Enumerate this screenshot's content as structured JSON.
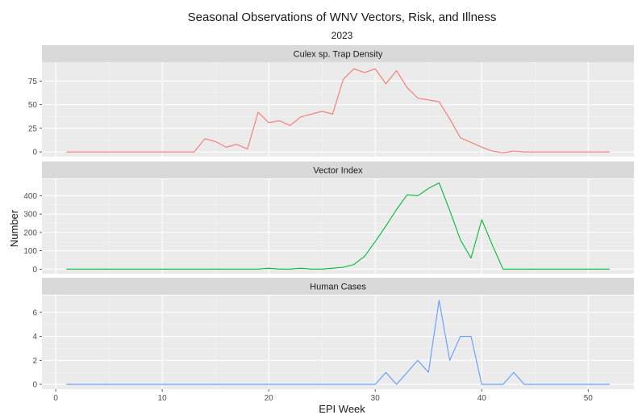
{
  "chart_data": {
    "type": "line",
    "title": "Seasonal Observations of WNV Vectors, Risk, and Illness",
    "subtitle": "2023",
    "xlabel": "EPI Week",
    "ylabel": "Number",
    "xlim": [
      1,
      52
    ],
    "x_ticks": [
      0,
      10,
      20,
      30,
      40,
      50
    ],
    "grid": true,
    "panels": [
      {
        "name": "Culex sp. Trap Density",
        "color": "#F8766D",
        "ylim": [
          -5,
          95
        ],
        "y_ticks": [
          0,
          25,
          50,
          75
        ],
        "x": [
          1,
          2,
          3,
          4,
          5,
          6,
          7,
          8,
          9,
          10,
          11,
          12,
          13,
          14,
          15,
          16,
          17,
          18,
          19,
          20,
          21,
          22,
          23,
          24,
          25,
          26,
          27,
          28,
          29,
          30,
          31,
          32,
          33,
          34,
          35,
          36,
          37,
          38,
          39,
          40,
          41,
          42,
          43,
          44,
          45,
          46,
          47,
          48,
          49,
          50,
          51,
          52
        ],
        "values": [
          0,
          0,
          0,
          0,
          0,
          0,
          0,
          0,
          0,
          0,
          0,
          0,
          0,
          14,
          11,
          5,
          8,
          3,
          42,
          31,
          33,
          28,
          37,
          40,
          43,
          40,
          77,
          88,
          84,
          88,
          72,
          86,
          68,
          57,
          55,
          53,
          35,
          15,
          10,
          5,
          1,
          -1,
          1,
          0,
          0,
          0,
          0,
          0,
          0,
          0,
          0,
          0
        ]
      },
      {
        "name": "Vector Index",
        "color": "#00BA38",
        "ylim": [
          -25,
          490
        ],
        "y_ticks": [
          0,
          100,
          200,
          300,
          400
        ],
        "x": [
          1,
          2,
          3,
          4,
          5,
          6,
          7,
          8,
          9,
          10,
          11,
          12,
          13,
          14,
          15,
          16,
          17,
          18,
          19,
          20,
          21,
          22,
          23,
          24,
          25,
          26,
          27,
          28,
          29,
          30,
          31,
          32,
          33,
          34,
          35,
          36,
          37,
          38,
          39,
          40,
          41,
          42,
          43,
          44,
          45,
          46,
          47,
          48,
          49,
          50,
          51,
          52
        ],
        "values": [
          0,
          0,
          0,
          0,
          0,
          0,
          0,
          0,
          0,
          0,
          0,
          0,
          0,
          0,
          0,
          0,
          0,
          0,
          0,
          5,
          0,
          0,
          5,
          0,
          0,
          5,
          10,
          25,
          70,
          150,
          235,
          325,
          405,
          400,
          440,
          470,
          320,
          160,
          60,
          270,
          130,
          0,
          0,
          0,
          0,
          0,
          0,
          0,
          0,
          0,
          0,
          0
        ]
      },
      {
        "name": "Human Cases",
        "color": "#619CFF",
        "ylim": [
          -0.4,
          7.4
        ],
        "y_ticks": [
          0,
          2,
          4,
          6
        ],
        "x": [
          1,
          2,
          3,
          4,
          5,
          6,
          7,
          8,
          9,
          10,
          11,
          12,
          13,
          14,
          15,
          16,
          17,
          18,
          19,
          20,
          21,
          22,
          23,
          24,
          25,
          26,
          27,
          28,
          29,
          30,
          31,
          32,
          33,
          34,
          35,
          36,
          37,
          38,
          39,
          40,
          41,
          42,
          43,
          44,
          45,
          46,
          47,
          48,
          49,
          50,
          51,
          52
        ],
        "values": [
          0,
          0,
          0,
          0,
          0,
          0,
          0,
          0,
          0,
          0,
          0,
          0,
          0,
          0,
          0,
          0,
          0,
          0,
          0,
          0,
          0,
          0,
          0,
          0,
          0,
          0,
          0,
          0,
          0,
          0,
          1,
          0,
          1,
          2,
          1,
          7,
          2,
          4,
          4,
          0,
          0,
          0,
          1,
          0,
          0,
          0,
          0,
          0,
          0,
          0,
          0,
          0
        ]
      }
    ]
  }
}
